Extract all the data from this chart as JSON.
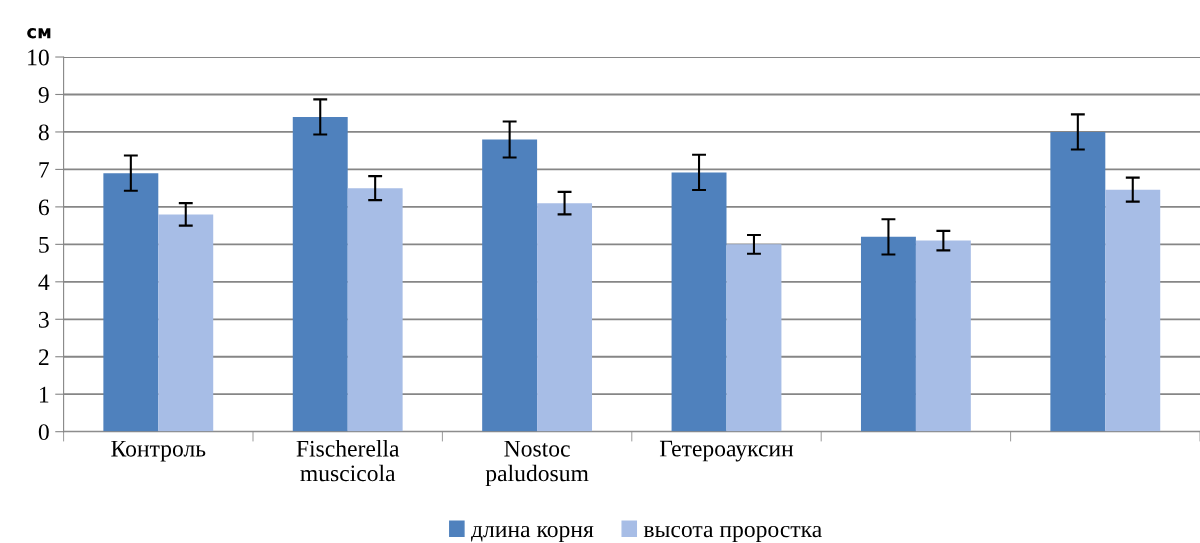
{
  "chart_data": {
    "type": "bar",
    "ylabel": "см",
    "categories": [
      "Контроль",
      "Fischerella\nmuscicola",
      "Nostoc\npaludosum",
      "Гетероауксин",
      null,
      null
    ],
    "series": [
      {
        "name": "длина корня",
        "color": "#4f81bd",
        "values": [
          6.9,
          8.4,
          7.8,
          6.92,
          5.2,
          8.0
        ],
        "errors": [
          0.47,
          0.47,
          0.48,
          0.47,
          0.47,
          0.47
        ]
      },
      {
        "name": "высота проростка",
        "color": "#a7bde6",
        "values": [
          5.8,
          6.5,
          6.1,
          5.0,
          5.1,
          6.46
        ],
        "errors": [
          0.3,
          0.32,
          0.3,
          0.25,
          0.26,
          0.32
        ]
      }
    ],
    "ylim": [
      0,
      10
    ],
    "yticks": [
      0,
      1,
      2,
      3,
      4,
      5,
      6,
      7,
      8,
      9,
      10
    ],
    "grid": "y",
    "legend": "bottom"
  }
}
